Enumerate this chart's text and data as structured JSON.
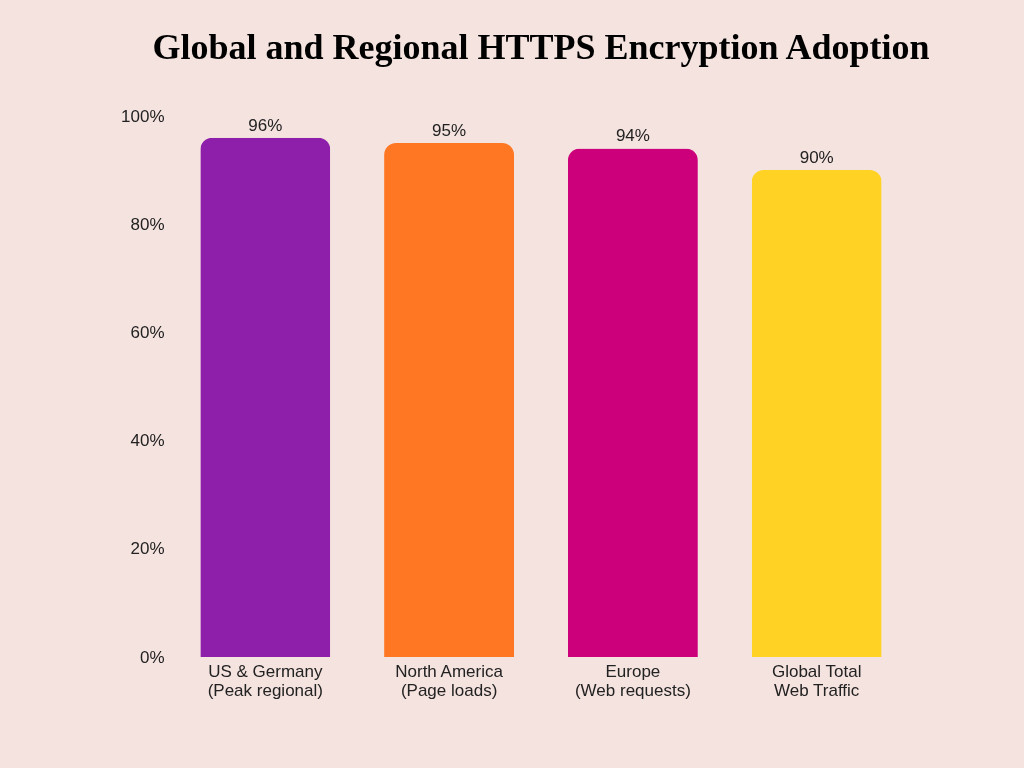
{
  "chart_data": {
    "type": "bar",
    "title": "Global and Regional HTTPS Encryption Adoption",
    "categories": [
      "US & Germany\n(Peak regional)",
      "North America\n(Page loads)",
      "Europe\n(Web requests)",
      "Global Total\nWeb Traffic"
    ],
    "values": [
      96,
      95,
      94,
      90
    ],
    "colors": [
      "#8e1fab",
      "#ff7722",
      "#cc007a",
      "#ffd224"
    ],
    "value_labels": [
      "96%",
      "95%",
      "94%",
      "90%"
    ],
    "ylim": [
      0,
      100
    ],
    "yticks": [
      {
        "value": 0,
        "label": "0%"
      },
      {
        "value": 20,
        "label": "20%"
      },
      {
        "value": 40,
        "label": "40%"
      },
      {
        "value": 60,
        "label": "60%"
      },
      {
        "value": 80,
        "label": "80%"
      },
      {
        "value": 100,
        "label": "100%"
      }
    ],
    "grid": false
  }
}
